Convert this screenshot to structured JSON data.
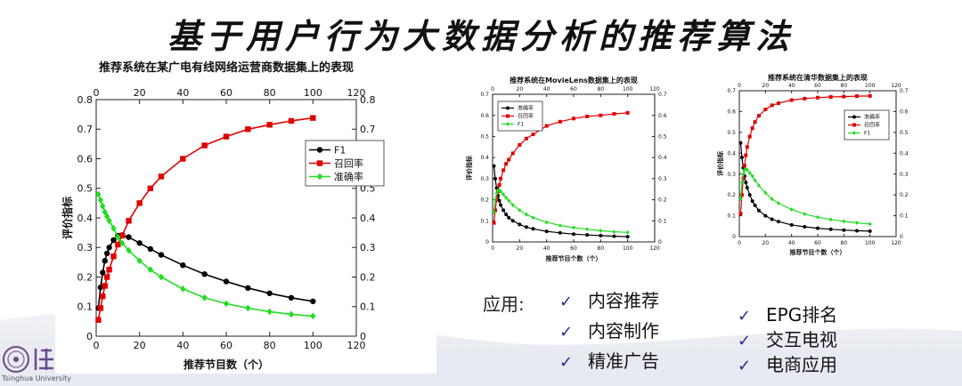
{
  "slide": {
    "title": "基于用户行为大数据分析的推荐算法",
    "app_label": "应用:",
    "apps_left": [
      "内容推荐",
      "内容制作",
      "精准广告"
    ],
    "apps_right": [
      "EPG排名",
      "交互电视",
      "电商应用"
    ],
    "check_icon": "check-icon",
    "logo_text": "Tsinghua University",
    "colors": {
      "check": "#1b2f8f",
      "f1": "#000000",
      "recall": "#e00000",
      "precision": "#22dd22"
    }
  },
  "chart_data": [
    {
      "type": "line",
      "title": "推荐系统在某广电有线网络运营商数据集上的表现",
      "xlabel": "推荐节目数（个）",
      "ylabel": "评价指标",
      "xlim": [
        0,
        120
      ],
      "ylim": [
        0,
        0.8
      ],
      "xticks": [
        "0",
        "20",
        "40",
        "60",
        "80",
        "100",
        "120"
      ],
      "yticks": [
        "0",
        "0.1",
        "0.2",
        "0.3",
        "0.4",
        "0.5",
        "0.6",
        "0.7",
        "0.8"
      ],
      "legend_position": "top-right",
      "series": [
        {
          "name": "F1",
          "color": "#000000",
          "marker": "circle",
          "x": [
            1,
            2,
            3,
            4,
            5,
            6,
            8,
            10,
            12,
            15,
            20,
            25,
            30,
            40,
            50,
            60,
            70,
            80,
            90,
            100
          ],
          "values": [
            0.095,
            0.165,
            0.215,
            0.255,
            0.28,
            0.3,
            0.325,
            0.34,
            0.342,
            0.335,
            0.315,
            0.295,
            0.275,
            0.24,
            0.21,
            0.185,
            0.163,
            0.145,
            0.13,
            0.118
          ]
        },
        {
          "name": "召回率",
          "color": "#e00000",
          "marker": "square",
          "x": [
            1,
            2,
            3,
            4,
            5,
            6,
            8,
            10,
            12,
            15,
            20,
            25,
            30,
            40,
            50,
            60,
            70,
            80,
            90,
            100
          ],
          "values": [
            0.055,
            0.095,
            0.135,
            0.17,
            0.2,
            0.225,
            0.27,
            0.31,
            0.34,
            0.39,
            0.45,
            0.5,
            0.54,
            0.6,
            0.645,
            0.675,
            0.7,
            0.715,
            0.728,
            0.738
          ]
        },
        {
          "name": "准确率",
          "color": "#22dd22",
          "marker": "diamond",
          "x": [
            1,
            2,
            3,
            4,
            5,
            6,
            8,
            10,
            12,
            15,
            20,
            25,
            30,
            40,
            50,
            60,
            70,
            80,
            90,
            100
          ],
          "values": [
            0.48,
            0.46,
            0.44,
            0.42,
            0.405,
            0.39,
            0.365,
            0.335,
            0.315,
            0.29,
            0.255,
            0.225,
            0.2,
            0.16,
            0.13,
            0.11,
            0.095,
            0.083,
            0.074,
            0.068
          ]
        }
      ]
    },
    {
      "type": "line",
      "title": "推荐系统在MovieLens数据集上的表现",
      "xlabel": "推荐节目个数（个）",
      "ylabel": "评价指标",
      "xlim": [
        0,
        120
      ],
      "ylim": [
        0,
        0.7
      ],
      "xticks": [
        "0",
        "20",
        "40",
        "60",
        "80",
        "100",
        "120"
      ],
      "yticks": [
        "0",
        "0.1",
        "0.2",
        "0.3",
        "0.4",
        "0.5",
        "0.6",
        "0.7"
      ],
      "legend_position": "top-left",
      "series": [
        {
          "name": "准确率",
          "color": "#000000",
          "marker": "circle",
          "x": [
            1,
            2,
            3,
            4,
            5,
            6,
            8,
            10,
            12,
            15,
            20,
            25,
            30,
            40,
            50,
            60,
            70,
            80,
            90,
            100
          ],
          "values": [
            0.36,
            0.3,
            0.255,
            0.22,
            0.195,
            0.175,
            0.15,
            0.13,
            0.115,
            0.1,
            0.083,
            0.07,
            0.062,
            0.05,
            0.043,
            0.037,
            0.033,
            0.03,
            0.027,
            0.025
          ]
        },
        {
          "name": "召回率",
          "color": "#e00000",
          "marker": "square",
          "x": [
            1,
            2,
            3,
            4,
            5,
            6,
            8,
            10,
            12,
            15,
            20,
            25,
            30,
            40,
            50,
            60,
            70,
            80,
            90,
            100
          ],
          "values": [
            0.09,
            0.15,
            0.2,
            0.24,
            0.27,
            0.3,
            0.34,
            0.37,
            0.39,
            0.42,
            0.46,
            0.49,
            0.51,
            0.55,
            0.57,
            0.585,
            0.595,
            0.6,
            0.607,
            0.612
          ]
        },
        {
          "name": "F1",
          "color": "#22dd22",
          "marker": "diamond",
          "x": [
            1,
            2,
            3,
            4,
            5,
            6,
            8,
            10,
            12,
            15,
            20,
            25,
            30,
            40,
            50,
            60,
            70,
            80,
            90,
            100
          ],
          "values": [
            0.14,
            0.2,
            0.23,
            0.245,
            0.245,
            0.24,
            0.225,
            0.21,
            0.195,
            0.175,
            0.15,
            0.13,
            0.115,
            0.093,
            0.078,
            0.068,
            0.06,
            0.053,
            0.048,
            0.045
          ]
        }
      ]
    },
    {
      "type": "line",
      "title": "推荐系统在清华数据集上的表现",
      "xlabel": "推荐节目个数（个）",
      "ylabel": "评价指标",
      "xlim": [
        0,
        120
      ],
      "ylim": [
        0,
        0.7
      ],
      "xticks": [
        "0",
        "20",
        "40",
        "60",
        "80",
        "100",
        "120"
      ],
      "yticks": [
        "0",
        "0.1",
        "0.2",
        "0.3",
        "0.4",
        "0.5",
        "0.6",
        "0.7"
      ],
      "legend_position": "top-right",
      "series": [
        {
          "name": "准确率",
          "color": "#000000",
          "marker": "circle",
          "x": [
            1,
            2,
            3,
            4,
            5,
            6,
            8,
            10,
            12,
            15,
            20,
            25,
            30,
            40,
            50,
            60,
            70,
            80,
            90,
            100
          ],
          "values": [
            0.45,
            0.38,
            0.33,
            0.29,
            0.26,
            0.235,
            0.2,
            0.17,
            0.15,
            0.125,
            0.1,
            0.083,
            0.072,
            0.056,
            0.047,
            0.04,
            0.035,
            0.031,
            0.028,
            0.026
          ]
        },
        {
          "name": "召回率",
          "color": "#e00000",
          "marker": "square",
          "x": [
            1,
            2,
            3,
            4,
            5,
            6,
            8,
            10,
            12,
            15,
            20,
            25,
            30,
            40,
            50,
            60,
            70,
            80,
            90,
            100
          ],
          "values": [
            0.11,
            0.2,
            0.28,
            0.34,
            0.39,
            0.43,
            0.48,
            0.52,
            0.55,
            0.58,
            0.61,
            0.63,
            0.64,
            0.655,
            0.662,
            0.667,
            0.67,
            0.672,
            0.674,
            0.675
          ]
        },
        {
          "name": "F1",
          "color": "#22dd22",
          "marker": "diamond",
          "x": [
            1,
            2,
            3,
            4,
            5,
            6,
            8,
            10,
            12,
            15,
            20,
            25,
            30,
            40,
            50,
            60,
            70,
            80,
            90,
            100
          ],
          "values": [
            0.18,
            0.26,
            0.3,
            0.32,
            0.325,
            0.32,
            0.305,
            0.29,
            0.27,
            0.245,
            0.21,
            0.18,
            0.16,
            0.13,
            0.108,
            0.093,
            0.082,
            0.073,
            0.066,
            0.06
          ]
        }
      ]
    }
  ]
}
